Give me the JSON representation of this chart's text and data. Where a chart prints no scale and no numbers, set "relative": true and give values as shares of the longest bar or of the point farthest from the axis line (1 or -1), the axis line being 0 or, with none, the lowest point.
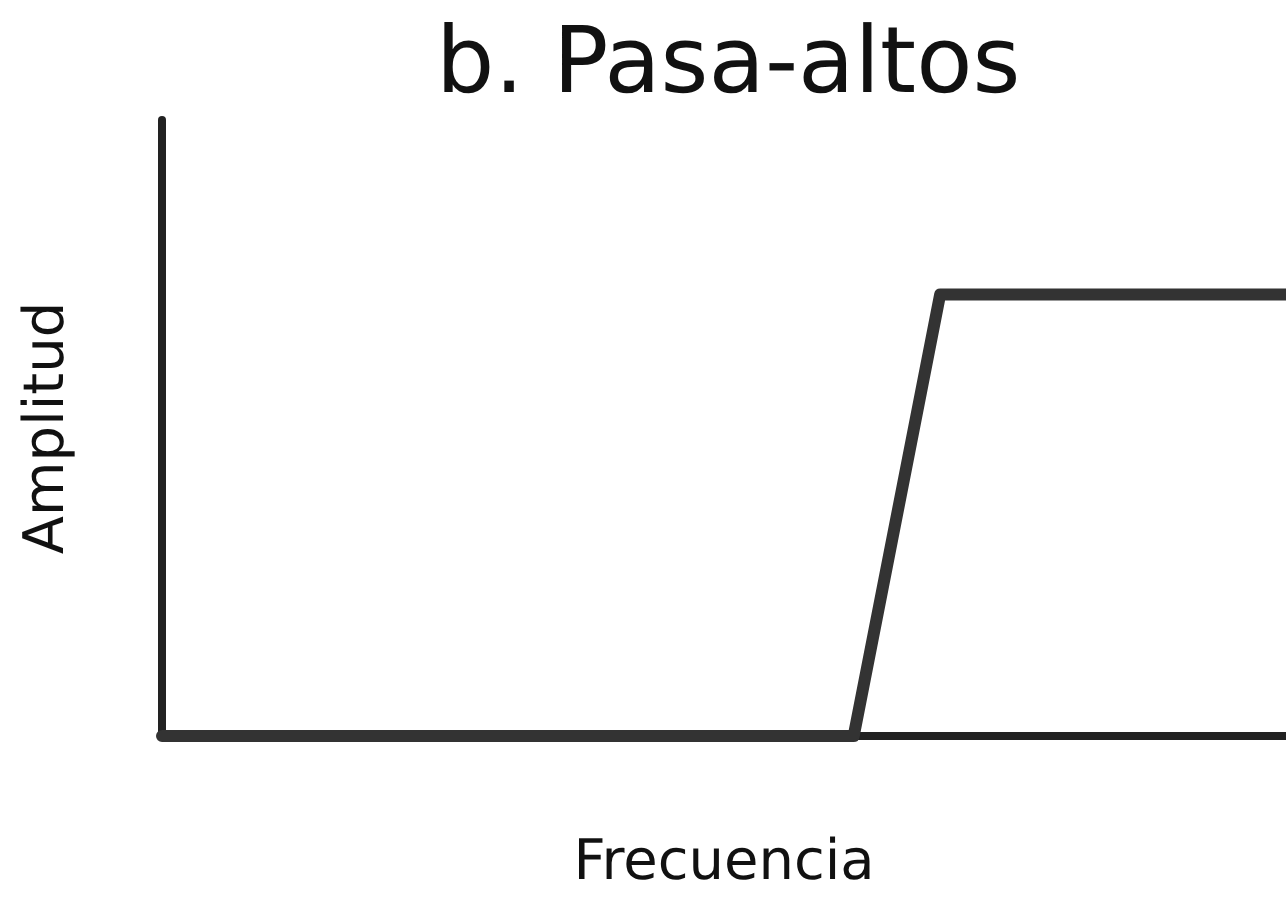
{
  "chart_data": {
    "type": "line",
    "title": "b. Pasa-altos",
    "xlabel": "Frecuencia",
    "ylabel": "Amplitud",
    "relative": true,
    "categories": [
      null,
      null,
      null,
      null,
      null,
      null,
      null,
      null,
      null,
      null,
      null,
      null,
      null,
      null
    ],
    "series": [
      {
        "color": "#333333",
        "values": [
          0,
          0,
          0,
          0,
          0,
          0,
          0,
          0,
          0,
          1,
          1,
          1,
          1,
          1
        ]
      }
    ],
    "grid": false,
    "marker": "none",
    "line_style": "solid"
  }
}
